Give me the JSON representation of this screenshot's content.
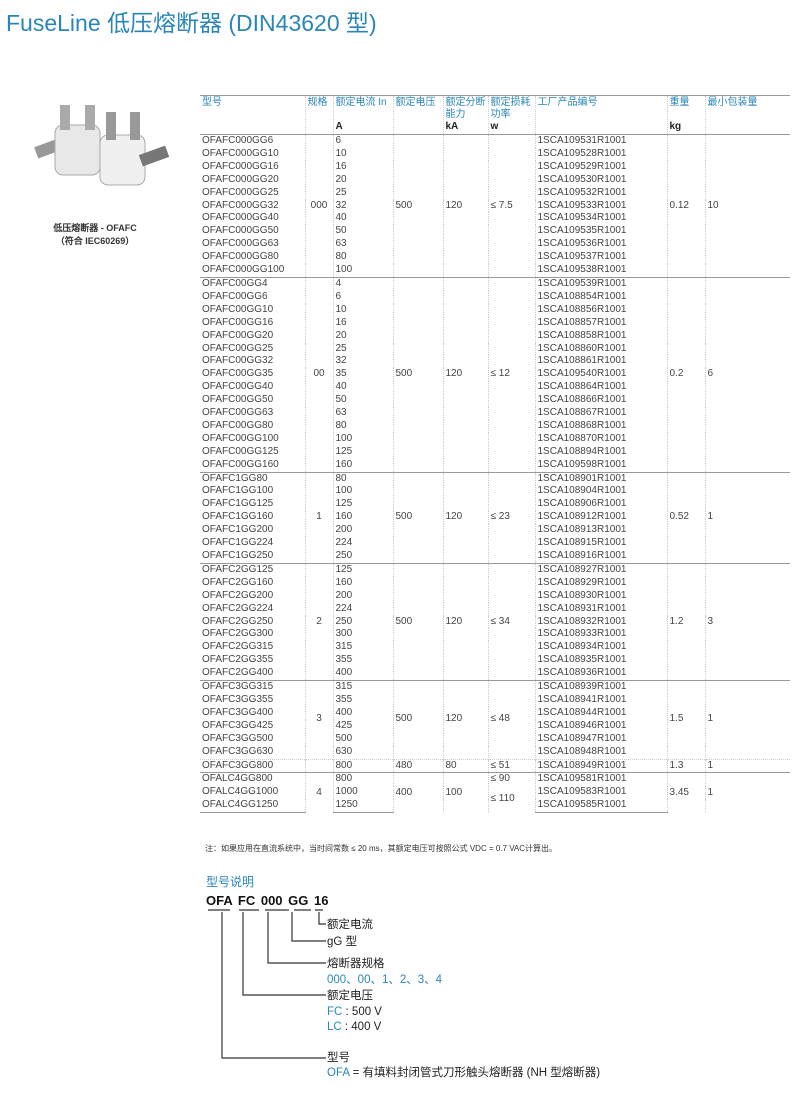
{
  "title": "FuseLine 低压熔断器 (DIN43620 型)",
  "image": {
    "caption_line1": "低压熔断器 - OFAFC",
    "caption_line2": "（符合 IEC60269）"
  },
  "table": {
    "headers": [
      {
        "label": "型号",
        "unit": ""
      },
      {
        "label": "规格",
        "unit": ""
      },
      {
        "label": "额定电流 In",
        "unit": "A"
      },
      {
        "label": "额定电压",
        "unit": ""
      },
      {
        "label": "额定分断能力",
        "unit": "kA"
      },
      {
        "label": "额定损耗功率",
        "unit": "w"
      },
      {
        "label": "工厂产品编号",
        "unit": ""
      },
      {
        "label": "重量",
        "unit": "kg"
      },
      {
        "label": "最小包装量",
        "unit": ""
      }
    ],
    "groups": [
      {
        "spec": "000",
        "voltage": "500",
        "breaking": "120",
        "loss": "≤ 7.5",
        "weight": "0.12",
        "pack": "10",
        "rows": [
          [
            "OFAFC000GG6",
            "6",
            "1SCA109531R1001"
          ],
          [
            "OFAFC000GG10",
            "10",
            "1SCA109528R1001"
          ],
          [
            "OFAFC000GG16",
            "16",
            "1SCA109529R1001"
          ],
          [
            "OFAFC000GG20",
            "20",
            "1SCA109530R1001"
          ],
          [
            "OFAFC000GG25",
            "25",
            "1SCA109532R1001"
          ],
          [
            "OFAFC000GG32",
            "32",
            "1SCA109533R1001"
          ],
          [
            "OFAFC000GG40",
            "40",
            "1SCA109534R1001"
          ],
          [
            "OFAFC000GG50",
            "50",
            "1SCA109535R1001"
          ],
          [
            "OFAFC000GG63",
            "63",
            "1SCA109536R1001"
          ],
          [
            "OFAFC000GG80",
            "80",
            "1SCA109537R1001"
          ],
          [
            "OFAFC000GG100",
            "100",
            "1SCA109538R1001"
          ]
        ]
      },
      {
        "spec": "00",
        "voltage": "500",
        "breaking": "120",
        "loss": "≤ 12",
        "weight": "0.2",
        "pack": "6",
        "rows": [
          [
            "OFAFC00GG4",
            "4",
            "1SCA109539R1001"
          ],
          [
            "OFAFC00GG6",
            "6",
            "1SCA108854R1001"
          ],
          [
            "OFAFC00GG10",
            "10",
            "1SCA108856R1001"
          ],
          [
            "OFAFC00GG16",
            "16",
            "1SCA108857R1001"
          ],
          [
            "OFAFC00GG20",
            "20",
            "1SCA108858R1001"
          ],
          [
            "OFAFC00GG25",
            "25",
            "1SCA108860R1001"
          ],
          [
            "OFAFC00GG32",
            "32",
            "1SCA108861R1001"
          ],
          [
            "OFAFC00GG35",
            "35",
            "1SCA109540R1001"
          ],
          [
            "OFAFC00GG40",
            "40",
            "1SCA108864R1001"
          ],
          [
            "OFAFC00GG50",
            "50",
            "1SCA108866R1001"
          ],
          [
            "OFAFC00GG63",
            "63",
            "1SCA108867R1001"
          ],
          [
            "OFAFC00GG80",
            "80",
            "1SCA108868R1001"
          ],
          [
            "OFAFC00GG100",
            "100",
            "1SCA108870R1001"
          ],
          [
            "OFAFC00GG125",
            "125",
            "1SCA108894R1001"
          ],
          [
            "OFAFC00GG160",
            "160",
            "1SCA109598R1001"
          ]
        ]
      },
      {
        "spec": "1",
        "voltage": "500",
        "breaking": "120",
        "loss": "≤ 23",
        "weight": "0.52",
        "pack": "1",
        "rows": [
          [
            "OFAFC1GG80",
            "80",
            "1SCA108901R1001"
          ],
          [
            "OFAFC1GG100",
            "100",
            "1SCA108904R1001"
          ],
          [
            "OFAFC1GG125",
            "125",
            "1SCA108906R1001"
          ],
          [
            "OFAFC1GG160",
            "160",
            "1SCA108912R1001"
          ],
          [
            "OFAFC1GG200",
            "200",
            "1SCA108913R1001"
          ],
          [
            "OFAFC1GG224",
            "224",
            "1SCA108915R1001"
          ],
          [
            "OFAFC1GG250",
            "250",
            "1SCA108916R1001"
          ]
        ]
      },
      {
        "spec": "2",
        "voltage": "500",
        "breaking": "120",
        "loss": "≤ 34",
        "weight": "1.2",
        "pack": "3",
        "rows": [
          [
            "OFAFC2GG125",
            "125",
            "1SCA108927R1001"
          ],
          [
            "OFAFC2GG160",
            "160",
            "1SCA108929R1001"
          ],
          [
            "OFAFC2GG200",
            "200",
            "1SCA108930R1001"
          ],
          [
            "OFAFC2GG224",
            "224",
            "1SCA108931R1001"
          ],
          [
            "OFAFC2GG250",
            "250",
            "1SCA108932R1001"
          ],
          [
            "OFAFC2GG300",
            "300",
            "1SCA108933R1001"
          ],
          [
            "OFAFC2GG315",
            "315",
            "1SCA108934R1001"
          ],
          [
            "OFAFC2GG355",
            "355",
            "1SCA108935R1001"
          ],
          [
            "OFAFC2GG400",
            "400",
            "1SCA108936R1001"
          ]
        ]
      },
      {
        "spec": "3",
        "voltage": "500",
        "breaking": "120",
        "loss": "≤ 48",
        "weight": "1.5",
        "pack": "1",
        "rows": [
          [
            "OFAFC3GG315",
            "315",
            "1SCA108939R1001"
          ],
          [
            "OFAFC3GG355",
            "355",
            "1SCA108941R1001"
          ],
          [
            "OFAFC3GG400",
            "400",
            "1SCA108944R1001"
          ],
          [
            "OFAFC3GG425",
            "425",
            "1SCA108946R1001"
          ],
          [
            "OFAFC3GG500",
            "500",
            "1SCA108947R1001"
          ],
          [
            "OFAFC3GG630",
            "630",
            "1SCA108948R1001"
          ]
        ]
      },
      {
        "sub": true,
        "spec": "",
        "voltage": "480",
        "breaking": "80",
        "loss": "≤ 51",
        "weight": "1.3",
        "pack": "1",
        "rows": [
          [
            "OFAFC3GG800",
            "800",
            "1SCA108949R1001"
          ]
        ]
      },
      {
        "spec": "4",
        "voltage": "400",
        "breaking": "100",
        "loss": [
          {
            "value": "≤ 90",
            "rows": 1
          },
          {
            "value": "≤ 110",
            "rows": 2
          }
        ],
        "weight": "3.45",
        "pack": "1",
        "rows": [
          [
            "OFALC4GG800",
            "800",
            "1SCA109581R1001"
          ],
          [
            "OFALC4GG1000",
            "1000",
            "1SCA109583R1001"
          ],
          [
            "OFALC4GG1250",
            "1250",
            "1SCA109585R1001"
          ]
        ]
      }
    ]
  },
  "note": "注：如果应用在直流系统中，当时间常数 ≤ 20 ms，其额定电压可按照公式 VDC = 0.7 VAC计算出。",
  "legend": {
    "title": "型号说明",
    "code_parts": [
      "OFA",
      "FC",
      "000",
      "GG",
      "16"
    ],
    "current": "额定电流",
    "type": "gG 型",
    "size": "熔断器规格",
    "size_values": "000、00、1、2、3、4",
    "voltage": "额定电压",
    "fc_code": "FC",
    "fc_value": " : 500 V",
    "lc_code": "LC",
    "lc_value": " : 400 V",
    "model": "型号",
    "ofa_code": "OFA",
    "ofa_value": " = 有填料封闭管式刀形触头熔断器 (NH 型熔断器)"
  },
  "colors": {
    "accent": "#2a86b8"
  }
}
